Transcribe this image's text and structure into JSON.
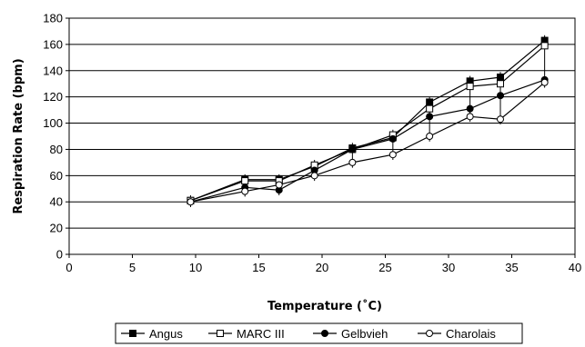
{
  "chart_data": {
    "type": "line",
    "title": "",
    "xlabel": "Temperature (˚C)",
    "ylabel": "Respiration Rate (bpm)",
    "xlim": [
      0,
      40
    ],
    "ylim": [
      0,
      180
    ],
    "xticks": [
      0,
      5,
      10,
      15,
      20,
      25,
      30,
      35,
      40
    ],
    "yticks": [
      0,
      20,
      40,
      60,
      80,
      100,
      120,
      140,
      160,
      180
    ],
    "grid": "horizontal",
    "legend_position": "bottom",
    "series": [
      {
        "name": "Angus",
        "marker": "filled-square",
        "x": [
          9.6,
          13.9,
          16.6,
          19.4,
          22.4,
          25.6,
          28.5,
          31.7,
          34.1,
          37.6
        ],
        "y": [
          41,
          57,
          57,
          67,
          81,
          89,
          116,
          132,
          135,
          163
        ]
      },
      {
        "name": "MARC III",
        "marker": "open-square",
        "x": [
          9.6,
          13.9,
          16.6,
          19.4,
          22.4,
          25.6,
          28.5,
          31.7,
          34.1,
          37.6
        ],
        "y": [
          41,
          56,
          56,
          68,
          80,
          91,
          111,
          128,
          130,
          159
        ]
      },
      {
        "name": "Gelbvieh",
        "marker": "filled-circle",
        "x": [
          9.6,
          13.9,
          16.6,
          19.4,
          22.4,
          25.6,
          28.5,
          31.7,
          34.1,
          37.6
        ],
        "y": [
          40,
          51,
          49,
          64,
          80,
          88,
          105,
          111,
          121,
          133
        ]
      },
      {
        "name": "Charolais",
        "marker": "open-circle",
        "x": [
          9.6,
          13.9,
          16.6,
          19.4,
          22.4,
          25.6,
          28.5,
          31.7,
          34.1,
          37.6
        ],
        "y": [
          40,
          48,
          53,
          60,
          70,
          76,
          90,
          105,
          103,
          131
        ]
      }
    ]
  }
}
